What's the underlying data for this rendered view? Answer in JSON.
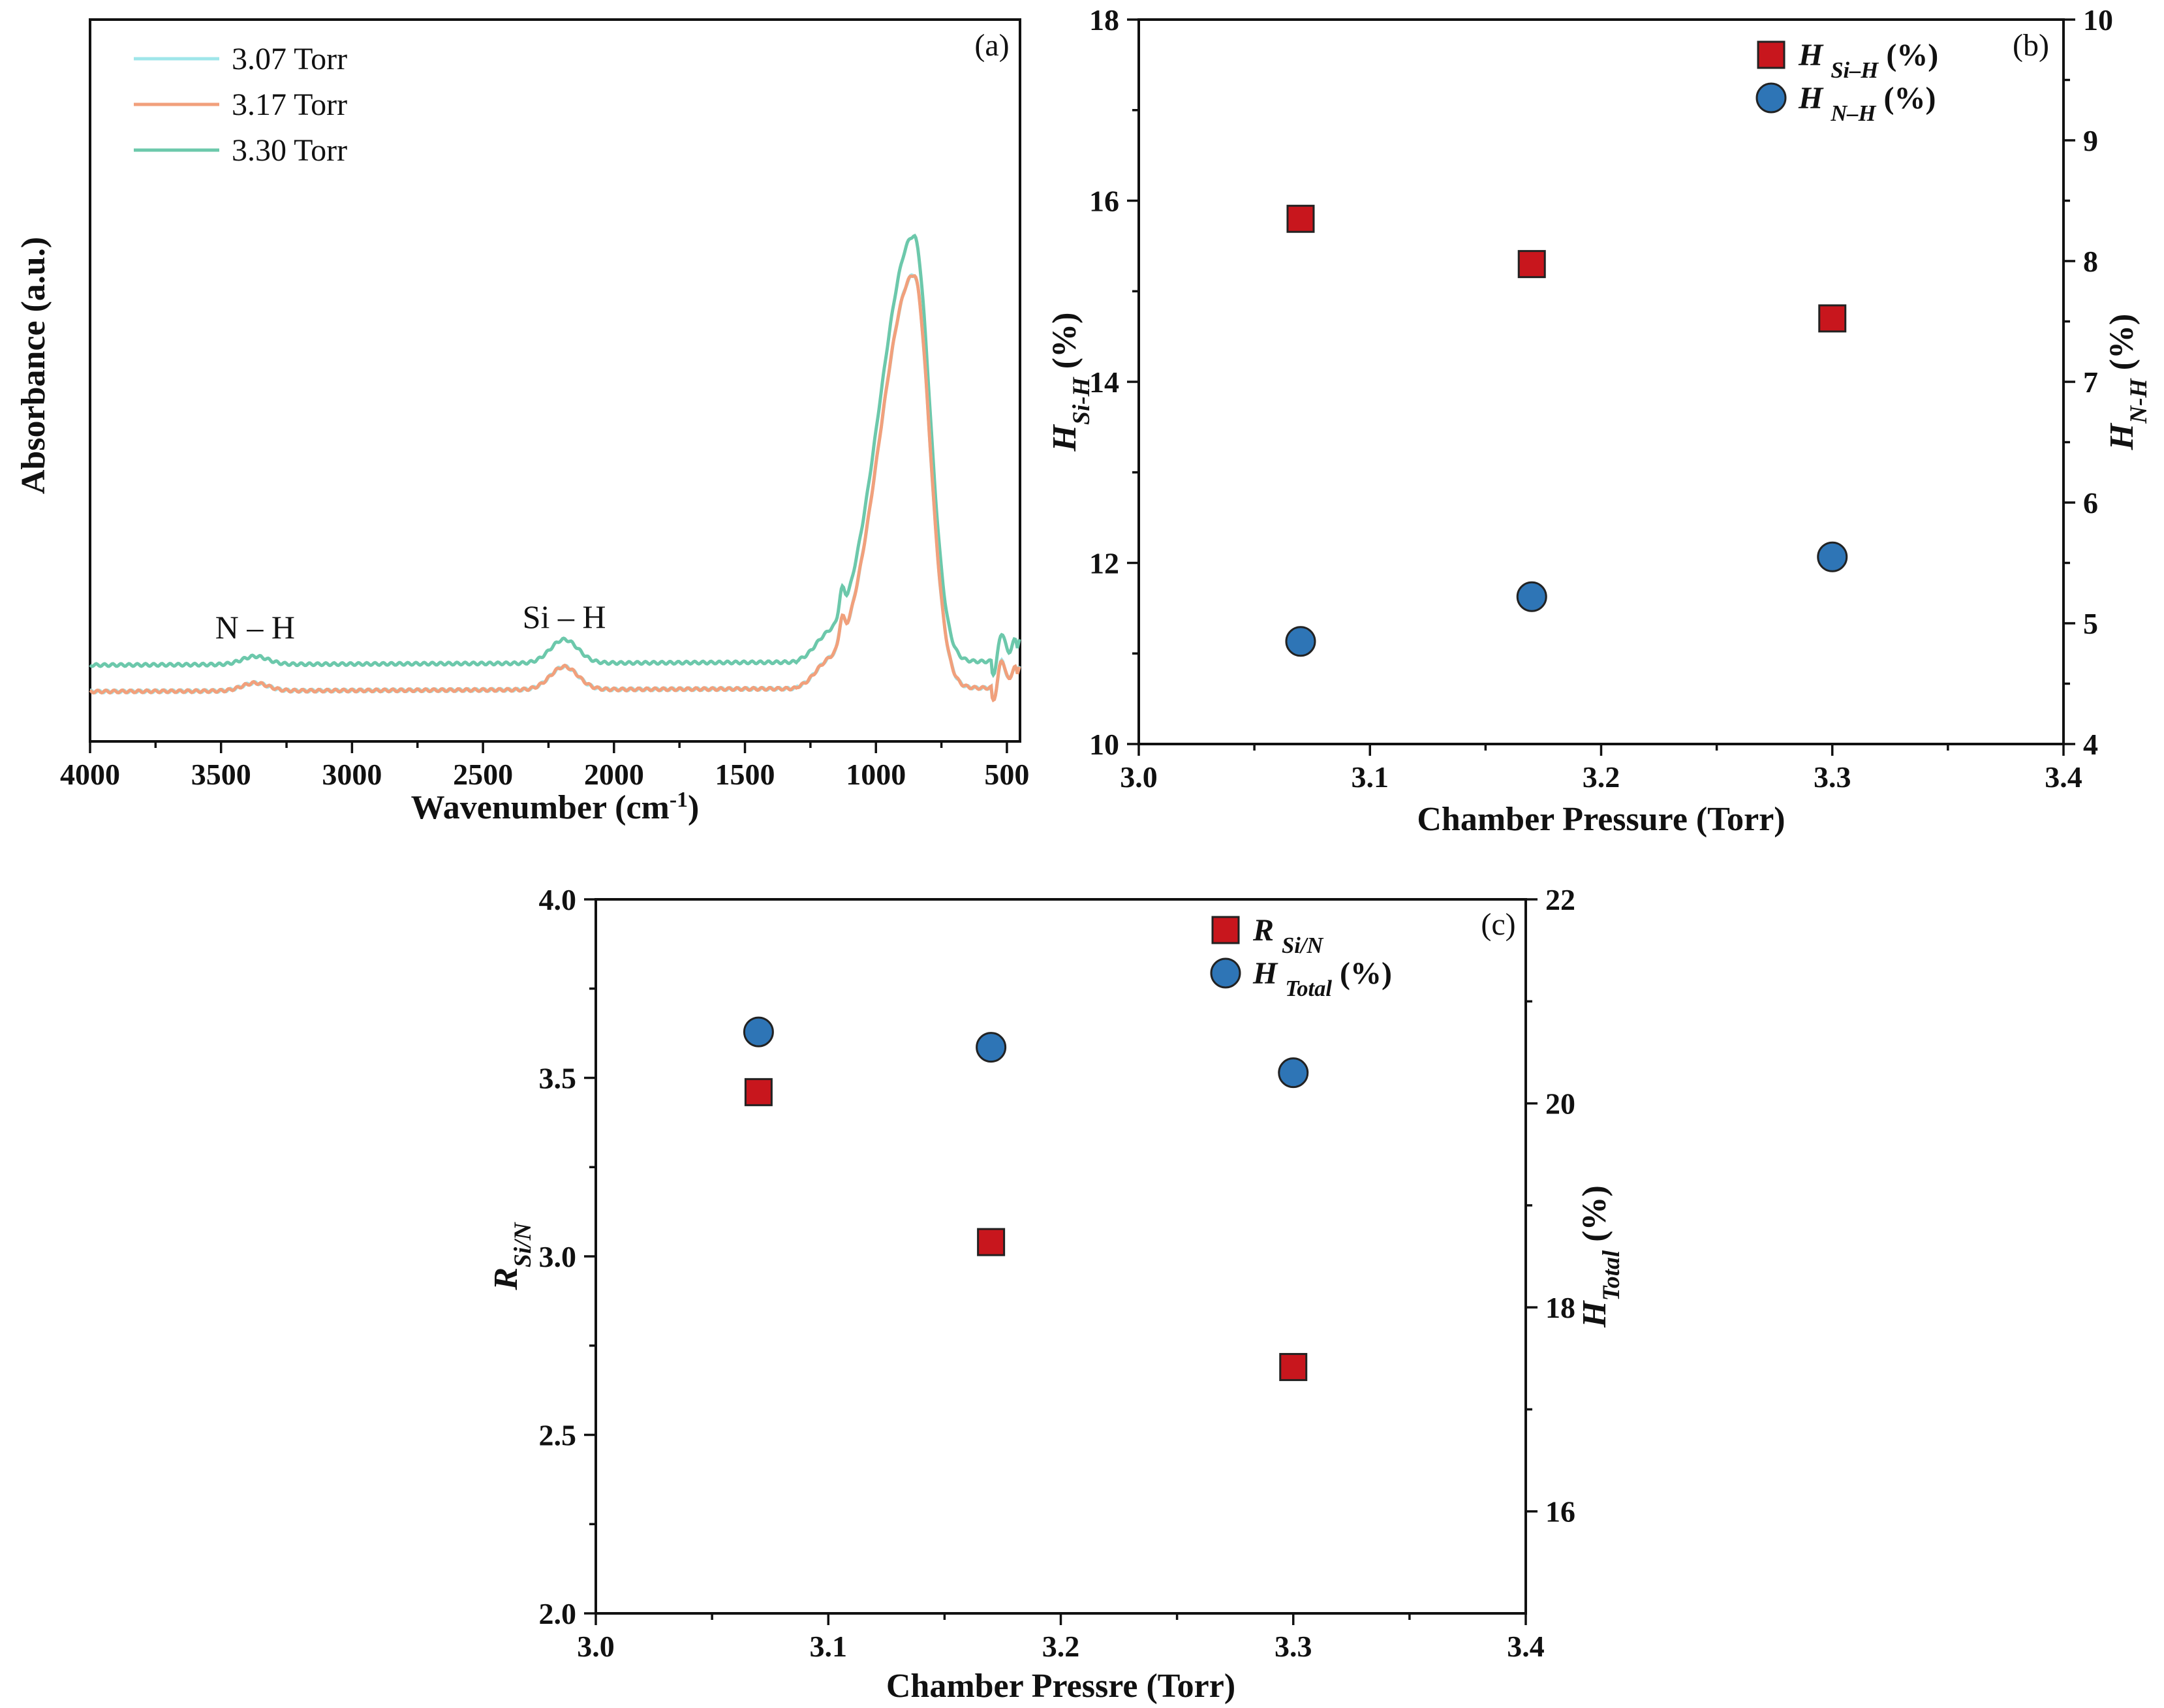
{
  "chart_data": [
    {
      "type": "line",
      "panel_label": "(a)",
      "xlabel_main": "Wavenumber (cm",
      "xlabel_sup": "-1",
      "xlabel_end": ")",
      "ylabel": "Absorbance (a.u.)",
      "xlim": [
        4000,
        450
      ],
      "xticks": [
        4000,
        3500,
        3000,
        2500,
        2000,
        1500,
        1000,
        500
      ],
      "xtick_labels": [
        "4000",
        "3500",
        "3000",
        "2500",
        "2000",
        "1500",
        "1000",
        "500"
      ],
      "annotations": [
        {
          "text": "N – H",
          "x": 3370,
          "y": 0.13
        },
        {
          "text": "Si – H",
          "x": 2190,
          "y": 0.15
        }
      ],
      "series": [
        {
          "name": "3.07 Torr",
          "color": "#9fe6ea",
          "offset": 0.0,
          "scale": 1.0
        },
        {
          "name": "3.17 Torr",
          "color": "#f1a07c",
          "offset": 0.0,
          "scale": 1.0
        },
        {
          "name": "3.30 Torr",
          "color": "#6cc8ab",
          "offset": 0.038,
          "scale": 1.03
        }
      ]
    },
    {
      "type": "scatter",
      "panel_label": "(b)",
      "xlabel": "Chamber Pressure (Torr)",
      "ylabel_left_main": "H",
      "ylabel_left_sub": "Si-H",
      "ylabel_left_end": " (%)",
      "ylabel_right_main": "H",
      "ylabel_right_sub": "N-H",
      "ylabel_right_end": " (%)",
      "xlim": [
        3.0,
        3.4
      ],
      "ylim_left": [
        10,
        18
      ],
      "ylim_right": [
        4,
        10
      ],
      "xticks": [
        "3.0",
        "3.1",
        "3.2",
        "3.3",
        "3.4"
      ],
      "yticks_left": [
        "10",
        "12",
        "14",
        "16",
        "18"
      ],
      "yticks_right": [
        "4",
        "5",
        "6",
        "7",
        "8",
        "9",
        "10"
      ],
      "series": [
        {
          "name": "H Si–H (%)",
          "legend_main": "H",
          "legend_sub": "Si–H",
          "legend_end": " (%)",
          "axis": "left",
          "marker": "square",
          "color": "#c8161d",
          "x": [
            3.07,
            3.17,
            3.3
          ],
          "values": [
            15.8,
            15.3,
            14.7
          ]
        },
        {
          "name": "H N–H (%)",
          "legend_main": "H",
          "legend_sub": "N–H",
          "legend_end": " (%)",
          "axis": "right",
          "marker": "circle",
          "color": "#2e75b6",
          "x": [
            3.07,
            3.17,
            3.3
          ],
          "values": [
            4.85,
            5.22,
            5.55
          ]
        }
      ]
    },
    {
      "type": "scatter",
      "panel_label": "(c)",
      "xlabel": "Chamber Pressre (Torr)",
      "ylabel_left_main": "R",
      "ylabel_left_sub": "Si/N",
      "ylabel_left_end": "",
      "ylabel_right_main": "H",
      "ylabel_right_sub": "Total",
      "ylabel_right_end": " (%)",
      "xlim": [
        3.0,
        3.4
      ],
      "ylim_left": [
        2.0,
        4.0
      ],
      "ylim_right": [
        15,
        22
      ],
      "xticks": [
        "3.0",
        "3.1",
        "3.2",
        "3.3",
        "3.4"
      ],
      "yticks_left": [
        "2.0",
        "2.5",
        "3.0",
        "3.5",
        "4.0"
      ],
      "yticks_right": [
        "16",
        "18",
        "20",
        "22"
      ],
      "series": [
        {
          "name": "R Si/N",
          "legend_main": "R",
          "legend_sub": "Si/N",
          "legend_end": "",
          "axis": "left",
          "marker": "square",
          "color": "#c8161d",
          "x": [
            3.07,
            3.17,
            3.3
          ],
          "values": [
            3.46,
            3.04,
            2.69
          ]
        },
        {
          "name": "H Total (%)",
          "legend_main": "H",
          "legend_sub": "Total",
          "legend_end": " (%)",
          "axis": "right",
          "marker": "circle",
          "color": "#2e75b6",
          "x": [
            3.07,
            3.17,
            3.3
          ],
          "values": [
            20.7,
            20.55,
            20.3
          ]
        }
      ]
    }
  ]
}
